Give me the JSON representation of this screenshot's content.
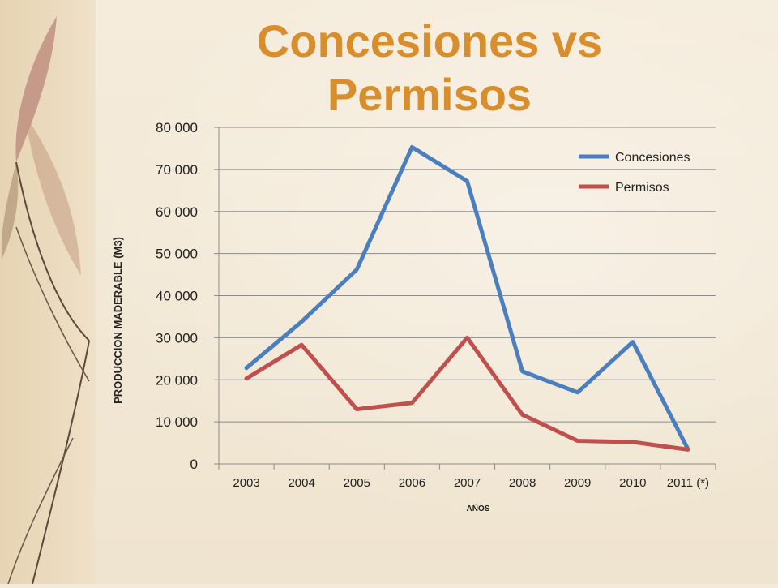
{
  "slide": {
    "title_line1": "Concesiones vs",
    "title_line2": "Permisos"
  },
  "colors": {
    "title": "#d88e2c",
    "concesiones": "#4a7ebf",
    "permisos": "#c0504d"
  },
  "chart_data": {
    "type": "line",
    "title": "",
    "xlabel": "AÑOS",
    "ylabel": "PRODUCCION MADERABLE (M3)",
    "categories": [
      "2003",
      "2004",
      "2005",
      "2006",
      "2007",
      "2008",
      "2009",
      "2010",
      "2011 (*)"
    ],
    "ylim": [
      0,
      80000
    ],
    "yticks": [
      0,
      10000,
      20000,
      30000,
      40000,
      50000,
      60000,
      70000,
      80000
    ],
    "ytick_labels": [
      "0",
      "10 000",
      "20 000",
      "30 000",
      "40 000",
      "50 000",
      "60 000",
      "70 000",
      "80 000"
    ],
    "grid": true,
    "legend_position": "top-right",
    "series": [
      {
        "name": "Concesiones",
        "color": "#4a7ebf",
        "values": [
          22800,
          33800,
          46200,
          75300,
          67200,
          22000,
          17000,
          29000,
          3500
        ]
      },
      {
        "name": "Permisos",
        "color": "#c0504d",
        "values": [
          20300,
          28300,
          13000,
          14500,
          30000,
          11700,
          5500,
          5200,
          3400
        ]
      }
    ]
  }
}
